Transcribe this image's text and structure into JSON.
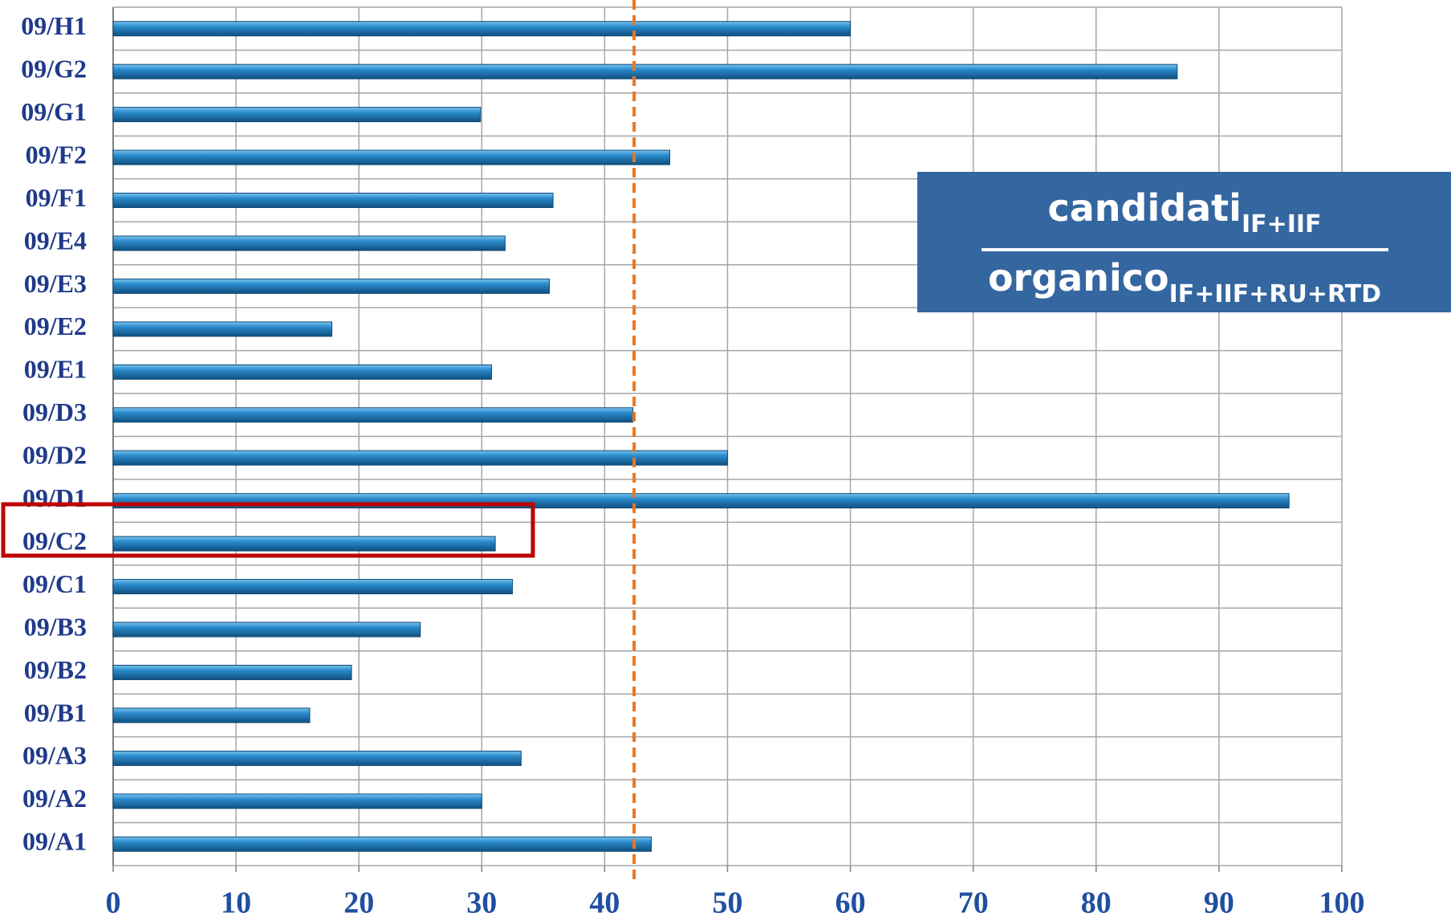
{
  "chart_data": {
    "type": "bar",
    "orientation": "horizontal",
    "categories": [
      "09/H1",
      "09/G2",
      "09/G1",
      "09/F2",
      "09/F1",
      "09/E4",
      "09/E3",
      "09/E2",
      "09/E1",
      "09/D3",
      "09/D2",
      "09/D1",
      "09/C2",
      "09/C1",
      "09/B3",
      "09/B2",
      "09/B1",
      "09/A3",
      "09/A2",
      "09/A1"
    ],
    "values": [
      60.0,
      86.6,
      29.9,
      45.3,
      35.8,
      31.9,
      35.5,
      17.8,
      30.8,
      42.3,
      50.0,
      95.7,
      31.1,
      32.5,
      25.0,
      19.4,
      16.0,
      33.2,
      30.0,
      43.8
    ],
    "color": "#2a8bcc",
    "xlim": [
      0,
      100
    ],
    "xticks": [
      0,
      10,
      20,
      30,
      40,
      50,
      60,
      70,
      80,
      90,
      100
    ],
    "grid": true,
    "reference_line": {
      "value": 42.4,
      "color": "#e87722"
    },
    "formula": {
      "numerator": "candidati",
      "numerator_sub": "IF+IIF",
      "denominator": "organico",
      "denominator_sub": "IF+IIF+RU+RTD"
    }
  }
}
